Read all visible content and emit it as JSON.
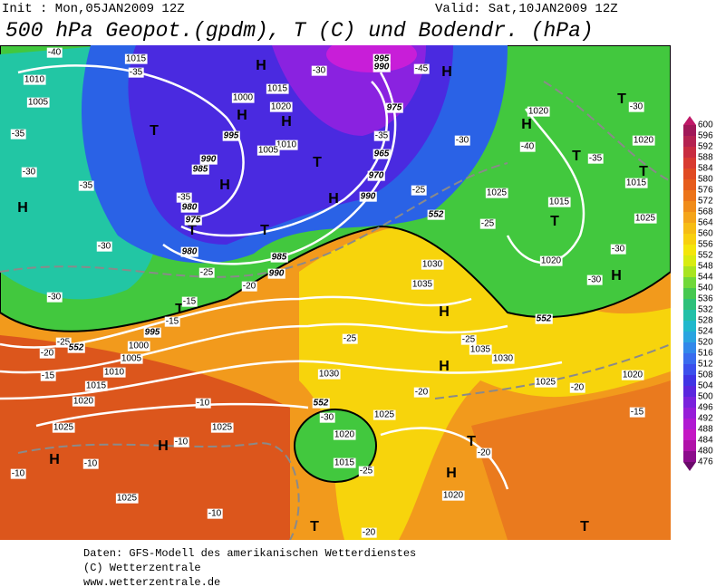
{
  "header": {
    "init": "Init : Mon,05JAN2009 12Z",
    "valid": "Valid: Sat,10JAN2009 12Z",
    "title": "500 hPa Geopot.(gpdm), T (C) und Bodendr. (hPa)"
  },
  "colorbar": {
    "labels": [
      600,
      596,
      592,
      588,
      584,
      580,
      576,
      572,
      568,
      564,
      560,
      556,
      552,
      548,
      544,
      540,
      536,
      532,
      528,
      524,
      520,
      516,
      512,
      508,
      504,
      500,
      496,
      492,
      488,
      484,
      480,
      476
    ]
  },
  "map": {
    "labels": [
      "H",
      "H",
      "H",
      "H",
      "H",
      "H",
      "H",
      "H",
      "H",
      "H",
      "H",
      "H",
      "H",
      "H",
      "T",
      "T",
      "T",
      "T",
      "T",
      "T",
      "T",
      "T",
      "T",
      "T",
      "T",
      "T",
      "1010",
      "1005",
      "1000",
      "1015",
      "1020",
      "995",
      "990",
      "985",
      "980",
      "975",
      "980",
      "985",
      "990",
      "995",
      "1000",
      "1005",
      "1010",
      "1015",
      "1020",
      "1025",
      "1025",
      "1025",
      "1030",
      "1035",
      "1030",
      "1035",
      "1030",
      "1025",
      "1020",
      "1020",
      "1020",
      "1025",
      "1015",
      "1015",
      "1025",
      "1020",
      "1025",
      "1020",
      "1015",
      "1020",
      "995",
      "990",
      "975",
      "965",
      "970",
      "990",
      "1010",
      "1005",
      "1015",
      "-40",
      "-35",
      "-30",
      "-35",
      "-35",
      "-30",
      "-25",
      "-20",
      "-15",
      "-15",
      "-10",
      "-10",
      "-10",
      "-10",
      "-15",
      "-20",
      "-25",
      "-25",
      "-25",
      "-20",
      "-30",
      "-35",
      "-40",
      "-35",
      "-30",
      "-25",
      "-25",
      "-30",
      "-30",
      "-15",
      "-20",
      "-20",
      "-10",
      "-20",
      "-25",
      "-30",
      "-45",
      "-30",
      "-30",
      "-35",
      "552",
      "552",
      "552",
      "552"
    ]
  },
  "footer": {
    "lines": [
      "Daten: GFS-Modell des amerikanischen Wetterdienstes",
      "(C) Wetterzentrale",
      "www.wetterzentrale.de"
    ]
  }
}
